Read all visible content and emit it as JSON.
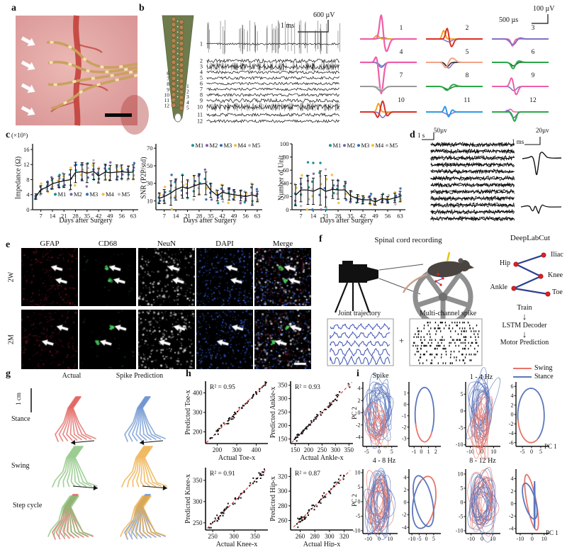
{
  "colors": {
    "swing": "#e8756a",
    "stance": "#5b76bc",
    "mice": [
      "#1f8f8f",
      "#7b5ea7",
      "#2e6db4",
      "#eebf3f",
      "#b8b8b8"
    ],
    "gait_stance_actual": "#e0635d",
    "gait_stance_pred": "#6b93cf",
    "gait_swing_actual": "#85c27a",
    "gait_swing_pred": "#eeab41",
    "fit_line": "#e03030"
  },
  "panels": {
    "a": {
      "label": "a"
    },
    "b": {
      "label": "b",
      "scale_amp": "600 µV",
      "scale_time": "1 ms",
      "units_scale_amp": "100 µV",
      "units_scale_time": "500 µs",
      "electrode_left": [
        "6",
        "7",
        "8",
        "9",
        "10",
        "11",
        "12"
      ],
      "electrode_right": [
        "1",
        "2",
        "3",
        "4",
        "5"
      ],
      "channels": [
        "1",
        "2",
        "3",
        "4",
        "5",
        "6",
        "7",
        "8",
        "9",
        "10",
        "11",
        "12"
      ],
      "unit_numbers": [
        "1",
        "2",
        "3",
        "4",
        "5",
        "6",
        "7",
        "8",
        "9",
        "10",
        "11",
        "12"
      ]
    },
    "c": {
      "label": "c"
    },
    "d": {
      "label": "d",
      "scale_time": "1 s",
      "scale_amp": "50µv",
      "scale_amp_right": "20µv",
      "scale_time_right": "1 ms"
    },
    "e": {
      "label": "e",
      "columns": [
        "GFAP",
        "CD68",
        "NeuN",
        "DAPI",
        "Merge"
      ],
      "rows": [
        "2W",
        "2M"
      ]
    },
    "f": {
      "label": "f",
      "title": "Spinal cord recording",
      "dlc": "DeepLabCut",
      "joints": [
        "Iliac",
        "Hip",
        "Knee",
        "Ankle",
        "Toe"
      ],
      "traj": "Joint trajectory",
      "plus": "+",
      "spike_box": "Multi-channel spike",
      "train": "Train",
      "down_arrow": "↓",
      "lstm": "LSTM Decoder",
      "motor": "Motor Prediction"
    },
    "g": {
      "label": "g",
      "col_actual": "Actual",
      "col_pred": "Spike Prediction",
      "scale": "1 cm",
      "rows": [
        "Stance",
        "Swing",
        "Step cycle"
      ]
    },
    "h": {
      "label": "h"
    },
    "i": {
      "label": "i",
      "titles": [
        "Spike",
        "1 - 4 Hz",
        "4 - 8 Hz",
        "8 - 12 Hz"
      ],
      "pc1": "PC 1",
      "pc2": "PC 2",
      "legend_swing": "Swing",
      "legend_stance": "Stance"
    }
  },
  "chart_data": {
    "c_plots": [
      {
        "type": "scatter-line",
        "ylabel": "Impedance (Ω)",
        "y_mult": "(×10⁵)",
        "xlabel": "Days after Surgery",
        "yticks": [
          0,
          4,
          8,
          12,
          16
        ],
        "ylim": [
          0,
          17.5
        ],
        "xticks": [
          7,
          14,
          21,
          28,
          35,
          42,
          49,
          56,
          63
        ],
        "xlim": [
          2,
          66
        ],
        "days": [
          4,
          7,
          11,
          14,
          18,
          21,
          25,
          28,
          32,
          35,
          39,
          42,
          46,
          49,
          53,
          56,
          60,
          63
        ],
        "mean": [
          3.5,
          5.3,
          6.1,
          6.9,
          7.4,
          7.7,
          8.0,
          9.9,
          10.1,
          9.7,
          10.2,
          9.0,
          10.0,
          9.8,
          10.0,
          10.1,
          9.9,
          10.0
        ],
        "sd": [
          0.7,
          1.1,
          1.2,
          1.4,
          1.5,
          1.8,
          2.6,
          2.7,
          2.4,
          2.5,
          2.2,
          1.9,
          2.1,
          2.0,
          1.9,
          1.8,
          1.7,
          1.9
        ],
        "legend": [
          "M1",
          "M2",
          "M3",
          "M4",
          "M5"
        ],
        "legend_pos": "inside",
        "seed": 21
      },
      {
        "type": "scatter-line",
        "ylabel": "SNR (P2P/std)",
        "xlabel": "Days after Surgery",
        "yticks": [
          10,
          30,
          50,
          70
        ],
        "ylim": [
          0,
          75
        ],
        "xticks": [
          7,
          14,
          21,
          28,
          35,
          42,
          49,
          56,
          63
        ],
        "xlim": [
          2,
          66
        ],
        "days": [
          4,
          7,
          11,
          14,
          18,
          21,
          25,
          28,
          32,
          35,
          39,
          42,
          46,
          49,
          53,
          56,
          60,
          63
        ],
        "mean": [
          13,
          15,
          19,
          23,
          26,
          24,
          27,
          29,
          30,
          22,
          16,
          20,
          18,
          17,
          16,
          15,
          17,
          15
        ],
        "sd": [
          6,
          8,
          14,
          12,
          13,
          10,
          12,
          12,
          13,
          8,
          6,
          8,
          7,
          6,
          6,
          5,
          12,
          6
        ],
        "legend": [
          "M1",
          "M2",
          "M3",
          "M4",
          "M5"
        ],
        "legend_pos": "top",
        "seed": 33
      },
      {
        "type": "scatter-line",
        "ylabel": "Number of Unit",
        "xlabel": "Days after Surgery",
        "yticks": [
          0,
          20,
          40,
          60,
          80,
          100
        ],
        "ylim": [
          0,
          100
        ],
        "xticks": [
          7,
          14,
          21,
          28,
          35,
          42,
          49,
          56,
          63
        ],
        "xlim": [
          2,
          66
        ],
        "days": [
          4,
          7,
          11,
          14,
          18,
          21,
          25,
          28,
          32,
          35,
          39,
          42,
          46,
          49,
          53,
          56,
          60,
          63
        ],
        "mean": [
          22,
          30,
          30,
          28,
          33,
          28,
          31,
          30,
          30,
          21,
          17,
          15,
          15,
          12,
          17,
          15,
          18,
          20
        ],
        "sd": [
          16,
          18,
          22,
          20,
          26,
          24,
          14,
          14,
          13,
          8,
          6,
          6,
          6,
          5,
          6,
          5,
          7,
          8
        ],
        "outliers": [
          [
            11,
            72
          ],
          [
            14,
            71
          ],
          [
            18,
            71
          ]
        ],
        "legend": [
          "M1",
          "M2",
          "M3",
          "M4",
          "M5"
        ],
        "legend_pos": "top",
        "seed": 45
      }
    ],
    "h_plots": [
      {
        "type": "scatter",
        "r2": "R² = 0.95",
        "xlabel": "Actual Toe-x",
        "ylabel": "Predicted Toe-x",
        "ticks": [
          200,
          300,
          400
        ],
        "lim": [
          140,
          460
        ],
        "n": 54,
        "noise": 17,
        "seed": 7
      },
      {
        "type": "scatter",
        "r2": "R² = 0.93",
        "xlabel": "Actual Ankle-x",
        "ylabel": "Predicted Ankle-x",
        "ticks": [
          150,
          200,
          250,
          300,
          350
        ],
        "lim": [
          133,
          365
        ],
        "n": 54,
        "noise": 14,
        "seed": 11
      },
      {
        "type": "scatter",
        "r2": "R² = 0.91",
        "xlabel": "Actual Knee-x",
        "ylabel": "Predicted Knee-x",
        "ticks": [
          250,
          300,
          350
        ],
        "lim": [
          233,
          380
        ],
        "n": 54,
        "noise": 10,
        "seed": 13
      },
      {
        "type": "scatter",
        "r2": "R² = 0.87",
        "xlabel": "Actual Hip-x",
        "ylabel": "Predicted Hip-x",
        "ticks": [
          260,
          280,
          300,
          320
        ],
        "lim": [
          247,
          332
        ],
        "n": 54,
        "noise": 7,
        "seed": 17
      }
    ],
    "i_plots": [
      {
        "kind": "cloud",
        "xticks": [
          -5,
          0,
          5
        ],
        "yticks": [
          4,
          2,
          0,
          -2,
          -4
        ],
        "xlim": [
          -6.5,
          6.5
        ],
        "ylim": [
          -5.5,
          4.7
        ],
        "seed": 3,
        "nBlue": 18,
        "nRed": 11,
        "blueBias": [
          0.2,
          0.7
        ],
        "redBias": [
          -1.0,
          -1.6
        ],
        "redScale": 0.6,
        "mix": false
      },
      {
        "kind": "avg",
        "xticks": [
          -1,
          0,
          1,
          2
        ],
        "yticks": [
          1,
          0,
          -1,
          -2,
          -3
        ],
        "xlim": [
          -1.7,
          2.4
        ],
        "ylim": [
          -3.7,
          1.8
        ],
        "loops": [
          {
            "cx": 0.45,
            "cy": -0.9,
            "rx": 1.3,
            "ry": 2.4,
            "rot": 0,
            "segs": [
              [
                "stance",
                -40,
                200
              ],
              [
                "swing",
                200,
                320
              ]
            ]
          }
        ]
      },
      {
        "kind": "cloud",
        "xticks": [
          -10,
          0,
          10
        ],
        "yticks": [
          5,
          0,
          -5,
          -10
        ],
        "xlim": [
          -14,
          14
        ],
        "ylim": [
          -10.5,
          8
        ],
        "seed": 5,
        "nBlue": 18,
        "nRed": 12,
        "blueBias": [
          0,
          2.2
        ],
        "redBias": [
          -1,
          -4
        ],
        "redScale": 0.75,
        "mix": false
      },
      {
        "kind": "avg",
        "xticks": [
          -5,
          0,
          5
        ],
        "yticks": [
          6,
          4,
          2,
          0,
          -2,
          -4,
          -6
        ],
        "xlim": [
          -8.5,
          8.5
        ],
        "ylim": [
          -6.8,
          6.5
        ],
        "loops": [
          {
            "cx": -0.3,
            "cy": -0.2,
            "rx": 7.2,
            "ry": 5.8,
            "rot": 0,
            "segs": [
              [
                "stance",
                -60,
                190
              ],
              [
                "swing",
                190,
                300
              ]
            ]
          }
        ]
      },
      {
        "kind": "cloud",
        "xticks": [
          -10,
          0,
          10
        ],
        "yticks": [
          10,
          5,
          0,
          -5,
          -10
        ],
        "xlim": [
          -15,
          15
        ],
        "ylim": [
          -11,
          10.5
        ],
        "seed": 9,
        "nBlue": 16,
        "nRed": 14,
        "blueBias": [
          0,
          0
        ],
        "redBias": [
          0,
          0
        ],
        "redScale": 0.85,
        "mix": true
      },
      {
        "kind": "avg",
        "xticks": [
          -10,
          -5,
          0,
          5
        ],
        "yticks": [
          4,
          2,
          0,
          -2,
          -4
        ],
        "xlim": [
          -12,
          8.5
        ],
        "ylim": [
          -5,
          5
        ],
        "loops": [
          {
            "cx": -1.5,
            "cy": 0,
            "rx": 8.2,
            "ry": 3.9,
            "rot": 12,
            "segs": [
              [
                "stance",
                100,
                280
              ],
              [
                "swing",
                280,
                460
              ]
            ]
          },
          {
            "cx": -2,
            "cy": 0.2,
            "rx": 7.4,
            "ry": 3.4,
            "rot": -20,
            "segs": [
              [
                "stance",
                0,
                360
              ]
            ]
          }
        ]
      },
      {
        "kind": "cloud",
        "xticks": [
          -10,
          0,
          10
        ],
        "yticks": [
          10,
          5,
          0,
          -5,
          -10
        ],
        "xlim": [
          -15,
          15
        ],
        "ylim": [
          -11,
          11
        ],
        "seed": 12,
        "nBlue": 15,
        "nRed": 15,
        "blueBias": [
          0,
          0
        ],
        "redBias": [
          0.5,
          0.5
        ],
        "redScale": 0.9,
        "mix": true
      },
      {
        "kind": "avg",
        "xticks": [
          -10,
          0,
          10
        ],
        "yticks": [
          4,
          2,
          0,
          -2,
          -4
        ],
        "xlim": [
          -13.5,
          12.5
        ],
        "ylim": [
          -4.8,
          5.2
        ],
        "loops": [
          {
            "cx": -0.5,
            "cy": 0.2,
            "rx": 6.8,
            "ry": 2.6,
            "rot": -35,
            "segs": [
              [
                "swing",
                0,
                360
              ]
            ]
          },
          {
            "cx": -2,
            "cy": 0.4,
            "rx": 6.4,
            "ry": 2.2,
            "rot": -18,
            "segs": [
              [
                "stance",
                0,
                360
              ]
            ]
          },
          {
            "cx": 2,
            "cy": -0.2,
            "rx": 0.3,
            "ry": 3.8,
            "rot": 0,
            "segs": [
              [
                "stance",
                0,
                360
              ]
            ]
          }
        ]
      }
    ]
  }
}
